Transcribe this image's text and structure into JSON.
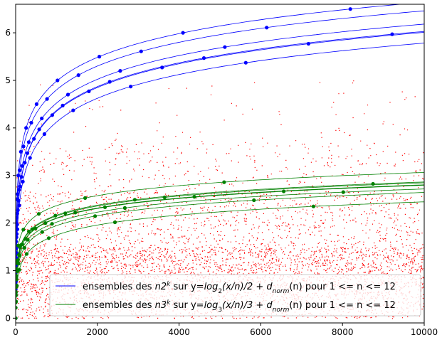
{
  "chart_data": {
    "type": "scatter",
    "title": "",
    "xlabel": "",
    "ylabel": "",
    "xlim": [
      0,
      10000
    ],
    "ylim": [
      -0.1,
      6.6
    ],
    "grid": false,
    "legend_position": "lower-right",
    "x_ticks": [
      0,
      2000,
      4000,
      6000,
      8000,
      10000
    ],
    "x_tick_labels": [
      "0",
      "2000",
      "4000",
      "6000",
      "8000",
      "10000"
    ],
    "y_ticks": [
      0,
      1,
      2,
      3,
      4,
      5,
      6
    ],
    "y_tick_labels": [
      "0",
      "1",
      "2",
      "3",
      "4",
      "5",
      "6"
    ],
    "colors": {
      "blue": "#0000ff",
      "green": "#008000",
      "red": "#ff0000",
      "legend_bg": "#ffffff",
      "legend_border": "#cccccc"
    },
    "legend": [
      {
        "color": "#0000ff",
        "pre": "ensembles des ",
        "math": "n2",
        "sup": "k",
        "mid": " sur y=",
        "formula": "log",
        "fsub": "2",
        "rest": "(x/n)/2 + ",
        "dterm": "d",
        "dsub": "norm",
        "tail": "(n) pour 1 <= n <= 12"
      },
      {
        "color": "#008000",
        "pre": "ensembles des ",
        "math": "n3",
        "sup": "k",
        "mid": " sur y=",
        "formula": "log",
        "fsub": "3",
        "rest": "(x/n)/3 + ",
        "dterm": "d",
        "dsub": "norm",
        "tail": "(n) pour 1 <= n <= 12"
      }
    ],
    "series": [
      {
        "name": "ensembles des n2^k",
        "kind": "curves",
        "color": "#0000ff",
        "base": 2,
        "curves": [
          {
            "n": 1,
            "offset": 0.0
          },
          {
            "n": 3,
            "offset": 0.61
          },
          {
            "n": 5,
            "offset": 0.7
          },
          {
            "n": 7,
            "offset": 0.77
          },
          {
            "n": 9,
            "offset": 0.97
          },
          {
            "n": 11,
            "offset": 0.87
          }
        ]
      },
      {
        "name": "ensembles des n3^k",
        "kind": "curves",
        "color": "#008000",
        "base": 3,
        "curves": [
          {
            "n": 1,
            "offset": 0.0
          },
          {
            "n": 2,
            "offset": 0.22
          },
          {
            "n": 4,
            "offset": 0.49
          },
          {
            "n": 5,
            "offset": 0.54
          },
          {
            "n": 7,
            "offset": 0.86
          },
          {
            "n": 8,
            "offset": 0.48
          },
          {
            "n": 10,
            "offset": 0.35
          },
          {
            "n": 11,
            "offset": 0.65
          }
        ]
      },
      {
        "name": "d_norm(n)",
        "kind": "scatter",
        "color": "#ff0000",
        "n_min": 1,
        "n_max": 10000
      }
    ]
  }
}
